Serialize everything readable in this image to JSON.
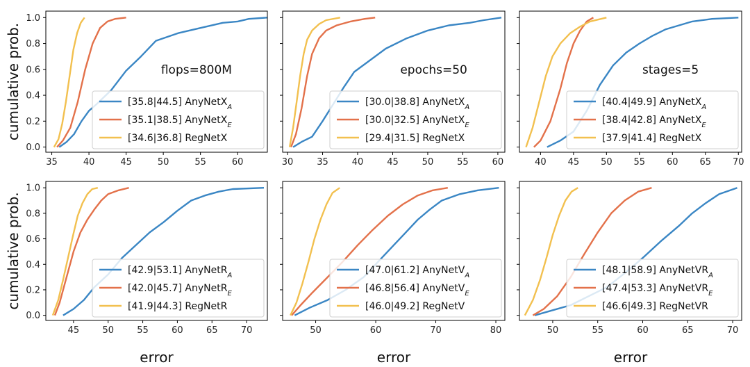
{
  "palette": {
    "blue": "#3a86c4",
    "orange": "#e3714a",
    "yellow": "#f2c04f"
  },
  "chart_data": [
    {
      "type": "line",
      "annotation": "flops=800M",
      "ylabel": "cumulative prob.",
      "xlabel": "",
      "xlim": [
        34.2,
        64
      ],
      "ylim": [
        -0.04,
        1.05
      ],
      "xticks": [
        35,
        40,
        45,
        50,
        55,
        60
      ],
      "yticks": [
        0.0,
        0.2,
        0.4,
        0.6,
        0.8,
        1.0
      ],
      "ytick_labels": [
        "0.0",
        "0.2",
        "0.4",
        "0.6",
        "0.8",
        "1.0"
      ],
      "series": [
        {
          "name": "AnyNetX",
          "subscript": "A",
          "range": "[35.8|44.5]",
          "color": "blue",
          "x": [
            36.0,
            37.0,
            38.0,
            39.0,
            40.0,
            41.0,
            43.0,
            45.0,
            47.0,
            49.0,
            52.0,
            55.0,
            58.0,
            60.0,
            61.5,
            64.0
          ],
          "y": [
            0.0,
            0.04,
            0.1,
            0.2,
            0.28,
            0.33,
            0.44,
            0.59,
            0.7,
            0.82,
            0.88,
            0.92,
            0.96,
            0.97,
            0.99,
            1.0
          ]
        },
        {
          "name": "AnyNetX",
          "subscript": "E",
          "range": "[35.1|38.5]",
          "color": "orange",
          "x": [
            35.7,
            36.5,
            37.5,
            38.5,
            39.5,
            40.5,
            41.5,
            42.5,
            43.5,
            45.0
          ],
          "y": [
            0.0,
            0.05,
            0.15,
            0.35,
            0.6,
            0.8,
            0.92,
            0.97,
            0.99,
            1.0
          ]
        },
        {
          "name": "RegNetX",
          "subscript": "",
          "range": "[34.6|36.8]",
          "color": "yellow",
          "x": [
            35.3,
            35.9,
            36.4,
            36.9,
            37.4,
            37.9,
            38.4,
            38.9,
            39.4
          ],
          "y": [
            0.0,
            0.06,
            0.18,
            0.35,
            0.55,
            0.75,
            0.88,
            0.96,
            1.0
          ]
        }
      ]
    },
    {
      "type": "line",
      "annotation": "epochs=50",
      "ylabel": "",
      "xlabel": "",
      "xlim": [
        29.3,
        61
      ],
      "ylim": [
        -0.04,
        1.05
      ],
      "xticks": [
        30,
        35,
        40,
        45,
        50,
        55,
        60
      ],
      "yticks": [
        0.0,
        0.2,
        0.4,
        0.6,
        0.8,
        1.0
      ],
      "ytick_labels": [],
      "series": [
        {
          "name": "AnyNetX",
          "subscript": "A",
          "range": "[30.0|38.8]",
          "color": "blue",
          "x": [
            30.8,
            32.0,
            33.5,
            35.0,
            36.5,
            38.0,
            39.5,
            41.5,
            44.0,
            47.0,
            50.0,
            53.0,
            56.0,
            58.0,
            60.5
          ],
          "y": [
            0.0,
            0.04,
            0.08,
            0.2,
            0.33,
            0.46,
            0.58,
            0.66,
            0.76,
            0.84,
            0.9,
            0.94,
            0.96,
            0.98,
            1.0
          ]
        },
        {
          "name": "AnyNetX",
          "subscript": "E",
          "range": "[30.0|32.5]",
          "color": "orange",
          "x": [
            30.5,
            31.2,
            32.0,
            32.8,
            33.5,
            34.5,
            35.5,
            37.0,
            39.0,
            41.0,
            42.5
          ],
          "y": [
            0.0,
            0.1,
            0.3,
            0.55,
            0.72,
            0.84,
            0.9,
            0.94,
            0.97,
            0.99,
            1.0
          ]
        },
        {
          "name": "RegNetX",
          "subscript": "",
          "range": "[29.4|31.5]",
          "color": "yellow",
          "x": [
            30.3,
            30.8,
            31.3,
            31.8,
            32.3,
            32.8,
            33.5,
            34.5,
            35.5,
            37.5
          ],
          "y": [
            0.0,
            0.15,
            0.35,
            0.55,
            0.72,
            0.83,
            0.9,
            0.95,
            0.98,
            1.0
          ]
        }
      ]
    },
    {
      "type": "line",
      "annotation": "stages=5",
      "ylabel": "",
      "xlabel": "",
      "xlim": [
        36.8,
        70.5
      ],
      "ylim": [
        -0.04,
        1.05
      ],
      "xticks": [
        40,
        45,
        50,
        55,
        60,
        65,
        70
      ],
      "yticks": [
        0.0,
        0.2,
        0.4,
        0.6,
        0.8,
        1.0
      ],
      "ytick_labels": [],
      "series": [
        {
          "name": "AnyNetX",
          "subscript": "A",
          "range": "[40.4|49.9]",
          "color": "blue",
          "x": [
            41.0,
            43.0,
            45.0,
            47.0,
            49.0,
            51.0,
            53.0,
            55.0,
            57.0,
            59.0,
            61.0,
            63.0,
            66.0,
            70.0
          ],
          "y": [
            0.0,
            0.05,
            0.12,
            0.28,
            0.48,
            0.63,
            0.73,
            0.8,
            0.86,
            0.91,
            0.94,
            0.97,
            0.99,
            1.0
          ]
        },
        {
          "name": "AnyNetX",
          "subscript": "E",
          "range": "[38.4|42.8]",
          "color": "orange",
          "x": [
            39.0,
            40.0,
            41.5,
            43.0,
            44.0,
            45.0,
            46.0,
            47.0,
            48.0
          ],
          "y": [
            0.0,
            0.05,
            0.2,
            0.45,
            0.65,
            0.8,
            0.9,
            0.97,
            1.0
          ]
        },
        {
          "name": "RegNetX",
          "subscript": "",
          "range": "[37.9|41.4]",
          "color": "yellow",
          "x": [
            37.8,
            38.8,
            39.8,
            40.8,
            41.8,
            43.0,
            44.5,
            46.0,
            47.5,
            50.0
          ],
          "y": [
            0.0,
            0.15,
            0.35,
            0.55,
            0.7,
            0.8,
            0.88,
            0.93,
            0.97,
            1.0
          ]
        }
      ]
    },
    {
      "type": "line",
      "annotation": "",
      "ylabel": "cumulative prob.",
      "xlabel": "error",
      "xlim": [
        41,
        73
      ],
      "ylim": [
        -0.04,
        1.05
      ],
      "xticks": [
        45,
        50,
        55,
        60,
        65,
        70
      ],
      "yticks": [
        0.0,
        0.2,
        0.4,
        0.6,
        0.8,
        1.0
      ],
      "ytick_labels": [
        "0.0",
        "0.2",
        "0.4",
        "0.6",
        "0.8",
        "1.0"
      ],
      "series": [
        {
          "name": "AnyNetR",
          "subscript": "A",
          "range": "[42.9|53.1]",
          "color": "blue",
          "x": [
            43.5,
            45.0,
            46.5,
            48.0,
            50.0,
            52.0,
            54.0,
            56.0,
            58.0,
            60.0,
            62.0,
            64.0,
            66.0,
            68.0,
            72.5
          ],
          "y": [
            0.0,
            0.05,
            0.12,
            0.22,
            0.32,
            0.45,
            0.55,
            0.65,
            0.73,
            0.82,
            0.9,
            0.94,
            0.97,
            0.99,
            1.0
          ]
        },
        {
          "name": "AnyNetR",
          "subscript": "E",
          "range": "[42.0|45.7]",
          "color": "orange",
          "x": [
            42.3,
            43.0,
            44.0,
            45.0,
            46.0,
            47.0,
            48.0,
            49.0,
            50.0,
            51.5,
            53.0
          ],
          "y": [
            0.0,
            0.1,
            0.3,
            0.5,
            0.65,
            0.75,
            0.83,
            0.9,
            0.95,
            0.98,
            1.0
          ]
        },
        {
          "name": "RegNetR",
          "subscript": "",
          "range": "[41.9|44.3]",
          "color": "yellow",
          "x": [
            42.0,
            42.8,
            43.5,
            44.2,
            44.9,
            45.6,
            46.3,
            47.0,
            47.7,
            48.5
          ],
          "y": [
            0.0,
            0.12,
            0.28,
            0.45,
            0.62,
            0.78,
            0.88,
            0.95,
            0.99,
            1.0
          ]
        }
      ]
    },
    {
      "type": "line",
      "annotation": "",
      "ylabel": "",
      "xlabel": "error",
      "xlim": [
        44.5,
        81.5
      ],
      "ylim": [
        -0.04,
        1.05
      ],
      "xticks": [
        50,
        60,
        70,
        80
      ],
      "yticks": [
        0.0,
        0.2,
        0.4,
        0.6,
        0.8,
        1.0
      ],
      "ytick_labels": [],
      "series": [
        {
          "name": "AnyNetV",
          "subscript": "A",
          "range": "[47.0|61.2]",
          "color": "blue",
          "x": [
            46.5,
            49.0,
            52.0,
            55.0,
            58.0,
            61.0,
            63.0,
            65.0,
            67.0,
            69.0,
            71.0,
            74.0,
            77.0,
            80.5
          ],
          "y": [
            0.0,
            0.06,
            0.12,
            0.2,
            0.3,
            0.45,
            0.55,
            0.65,
            0.75,
            0.83,
            0.9,
            0.95,
            0.98,
            1.0
          ]
        },
        {
          "name": "AnyNetV",
          "subscript": "E",
          "range": "[46.8|56.4]",
          "color": "orange",
          "x": [
            46.0,
            47.5,
            49.5,
            52.0,
            54.5,
            57.0,
            59.5,
            62.0,
            64.5,
            67.0,
            69.5,
            72.0
          ],
          "y": [
            0.0,
            0.08,
            0.18,
            0.3,
            0.42,
            0.55,
            0.67,
            0.78,
            0.87,
            0.94,
            0.98,
            1.0
          ]
        },
        {
          "name": "RegNetV",
          "subscript": "",
          "range": "[46.0|49.2]",
          "color": "yellow",
          "x": [
            45.8,
            46.8,
            47.8,
            48.8,
            49.8,
            50.8,
            51.8,
            52.8,
            54.0
          ],
          "y": [
            0.0,
            0.1,
            0.25,
            0.42,
            0.6,
            0.75,
            0.87,
            0.96,
            1.0
          ]
        }
      ]
    },
    {
      "type": "line",
      "annotation": "",
      "ylabel": "",
      "xlabel": "error",
      "xlim": [
        46.3,
        71
      ],
      "ylim": [
        -0.04,
        1.05
      ],
      "xticks": [
        50,
        55,
        60,
        65,
        70
      ],
      "yticks": [
        0.0,
        0.2,
        0.4,
        0.6,
        0.8,
        1.0
      ],
      "ytick_labels": [],
      "series": [
        {
          "name": "AnyNetVR",
          "subscript": "A",
          "range": "[48.1|58.9]",
          "color": "blue",
          "x": [
            48.0,
            50.0,
            52.0,
            54.0,
            56.0,
            58.0,
            60.0,
            62.0,
            64.0,
            65.5,
            67.0,
            68.5,
            70.5
          ],
          "y": [
            0.0,
            0.04,
            0.08,
            0.15,
            0.22,
            0.33,
            0.45,
            0.58,
            0.7,
            0.8,
            0.88,
            0.95,
            1.0
          ]
        },
        {
          "name": "AnyNetVR",
          "subscript": "E",
          "range": "[47.4|53.3]",
          "color": "orange",
          "x": [
            47.8,
            49.0,
            50.5,
            52.0,
            53.5,
            55.0,
            56.5,
            58.0,
            59.5,
            61.0
          ],
          "y": [
            0.0,
            0.05,
            0.15,
            0.3,
            0.48,
            0.65,
            0.8,
            0.9,
            0.97,
            1.0
          ]
        },
        {
          "name": "RegNetVR",
          "subscript": "",
          "range": "[46.6|49.3]",
          "color": "yellow",
          "x": [
            46.9,
            47.8,
            48.6,
            49.3,
            50.0,
            50.7,
            51.4,
            52.1,
            52.8
          ],
          "y": [
            0.0,
            0.12,
            0.28,
            0.45,
            0.63,
            0.78,
            0.9,
            0.97,
            1.0
          ]
        }
      ]
    }
  ]
}
